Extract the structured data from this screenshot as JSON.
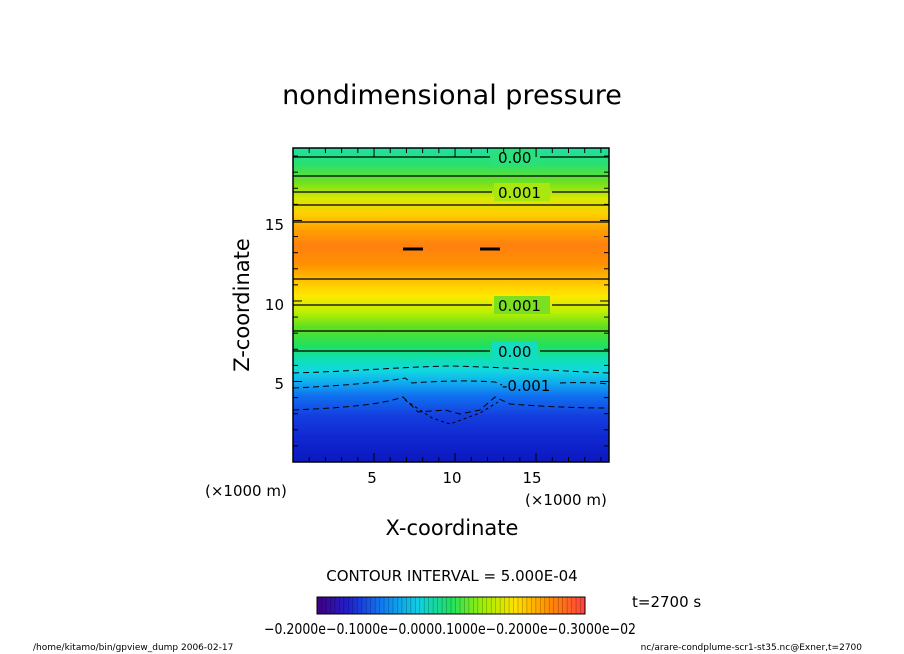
{
  "chart_data": {
    "type": "heatmap",
    "title": "nondimensional pressure",
    "xlabel": "X-coordinate",
    "ylabel": "Z-coordinate",
    "x_unit": "(×1000 m)",
    "y_unit": "(×1000 m)",
    "xlim": [
      0,
      19.5
    ],
    "ylim": [
      0,
      19.5
    ],
    "x_ticks": [
      "5",
      "10",
      "15"
    ],
    "y_ticks": [
      "5",
      "10",
      "15"
    ],
    "contour_labels": [
      "0.00",
      "0.001",
      "0.001",
      "0.00",
      "-0.001"
    ],
    "contour_interval": "CONTOUR INTERVAL = 5.000E-04",
    "time_label": "t=2700 s",
    "colorbar_text": "−0.2000e−0.1000e−0.0000.1000e−0.2000e−0.3000e−02",
    "colorbar_range": [
      -0.002,
      0.003
    ],
    "footer_left": "/home/kitamo/bin/gpview_dump   2006-02-17",
    "footer_right": "nc/arare-condplume-scr1-st35.nc@Exner,t=2700",
    "colors": {
      "low": "#0b18c0",
      "mid": "#1fe0a0",
      "high": "#ff7e0a"
    }
  }
}
